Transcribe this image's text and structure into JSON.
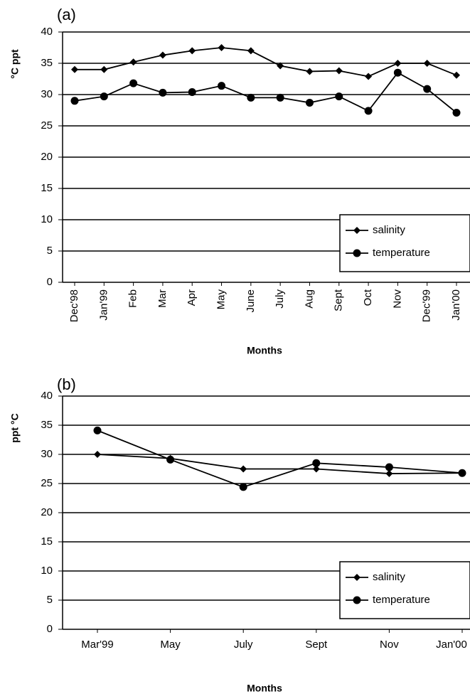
{
  "chart_data": [
    {
      "type": "line",
      "panel": "(a)",
      "ylabel": "°C ppt",
      "xlabel": "Months",
      "categories": [
        "Dec'98",
        "Jan'99",
        "Feb",
        "Mar",
        "Apr",
        "May",
        "June",
        "July",
        "Aug",
        "Sept",
        "Oct",
        "Nov",
        "Dec'99",
        "Jan'00"
      ],
      "series": [
        {
          "name": "salinity",
          "color": "#000000",
          "marker": "diamond",
          "values": [
            34,
            34,
            35.2,
            36.3,
            37,
            37.5,
            37,
            34.6,
            33.7,
            33.8,
            32.9,
            35,
            35,
            33.1
          ]
        },
        {
          "name": "temperature",
          "color": "#000000",
          "marker": "circle",
          "values": [
            29,
            29.7,
            31.8,
            30.3,
            30.4,
            31.4,
            29.5,
            29.5,
            28.7,
            29.7,
            27.4,
            33.5,
            30.9,
            27.1
          ]
        }
      ],
      "ylim": [
        0,
        40
      ],
      "yticks": [
        0,
        5,
        10,
        15,
        20,
        25,
        30,
        35,
        40
      ],
      "grid": true,
      "legend": "lower right",
      "rotate_xticks": true
    },
    {
      "type": "line",
      "panel": "(b)",
      "ylabel": "ppt °C",
      "xlabel": "Months",
      "categories": [
        "Mar'99",
        "May",
        "July",
        "Sept",
        "Nov",
        "Jan'00"
      ],
      "series": [
        {
          "name": "salinity",
          "color": "#000000",
          "marker": "diamond",
          "values": [
            30,
            29.3,
            27.5,
            27.5,
            26.7,
            26.8
          ]
        },
        {
          "name": "temperature",
          "color": "#000000",
          "marker": "circle",
          "values": [
            34.1,
            29.1,
            24.4,
            28.5,
            27.8,
            26.8
          ]
        }
      ],
      "ylim": [
        0,
        40
      ],
      "yticks": [
        0,
        5,
        10,
        15,
        20,
        25,
        30,
        35,
        40
      ],
      "grid": true,
      "legend": "lower right",
      "rotate_xticks": false
    }
  ]
}
